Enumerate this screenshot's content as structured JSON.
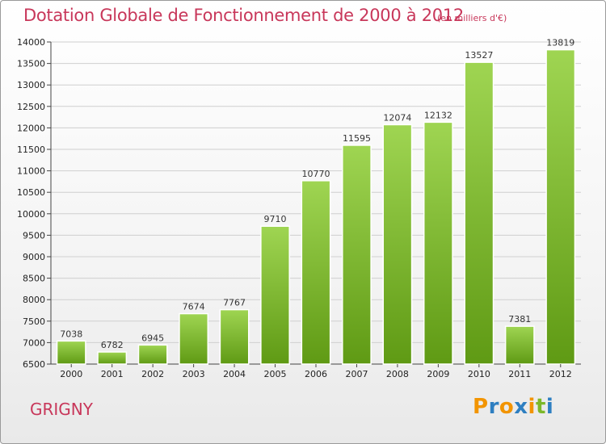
{
  "header": {
    "title": "Dotation Globale de Fonctionnement de 2000 à 2012",
    "subtitle": "(en milliers d'€)"
  },
  "footer": {
    "commune": "GRIGNY",
    "logo_letters": [
      "P",
      "r",
      "o",
      "x",
      "i",
      "t",
      "i"
    ],
    "logo_colors": [
      "#f29400",
      "#2e7fc1",
      "#f29400",
      "#2e7fc1",
      "#f29400",
      "#7cb829",
      "#2e7fc1"
    ]
  },
  "chart_data": {
    "type": "bar",
    "categories": [
      "2000",
      "2001",
      "2002",
      "2003",
      "2004",
      "2005",
      "2006",
      "2007",
      "2008",
      "2009",
      "2010",
      "2011",
      "2012"
    ],
    "values": [
      7038,
      6782,
      6945,
      7674,
      7767,
      9710,
      10770,
      11595,
      12074,
      12132,
      13527,
      7381,
      13819
    ],
    "value_labels": [
      "7038",
      "6782",
      "6945",
      "7674",
      "7767",
      "9710",
      "10770",
      "11595",
      "12074",
      "12132",
      "13527",
      "7381",
      "13819"
    ],
    "title": "Dotation Globale de Fonctionnement de 2000 à 2012",
    "xlabel": "",
    "ylabel": "",
    "ylim": [
      6500,
      14000
    ],
    "yticks": [
      6500,
      7000,
      7500,
      8000,
      8500,
      9000,
      9500,
      10000,
      10500,
      11000,
      11500,
      12000,
      12500,
      13000,
      13500,
      14000
    ],
    "ytick_labels": [
      "6500",
      "7000",
      "7500",
      "8000",
      "8500",
      "9000",
      "9500",
      "10000",
      "10500",
      "11000",
      "11500",
      "12000",
      "12500",
      "13000",
      "13500",
      "14000"
    ],
    "grid": true,
    "colors": {
      "bar_top": "#9fd552",
      "bar_bottom": "#5f9a14",
      "grid": "#cfcfcf"
    }
  }
}
